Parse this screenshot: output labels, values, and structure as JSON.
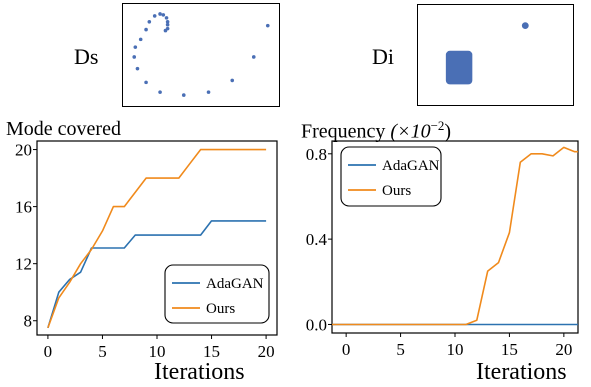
{
  "panels": {
    "ds": {
      "label": "Ds"
    },
    "di": {
      "label": "Di"
    }
  },
  "colors": {
    "adagan": "#2c72b0",
    "ours": "#f08a1c",
    "points": "#4a6fb5"
  },
  "chart_data": [
    {
      "type": "scatter",
      "name_label": "Ds",
      "axes": "hidden",
      "points": [
        [
          -0.08,
          0.62
        ],
        [
          -0.05,
          0.7
        ],
        [
          0.0,
          0.76
        ],
        [
          0.05,
          0.78
        ],
        [
          0.08,
          0.77
        ],
        [
          0.11,
          0.74
        ],
        [
          0.12,
          0.7
        ],
        [
          0.12,
          0.67
        ],
        [
          0.12,
          0.63
        ],
        [
          0.1,
          0.61
        ],
        [
          -0.13,
          0.52
        ],
        [
          -0.18,
          0.44
        ],
        [
          -0.19,
          0.34
        ],
        [
          -0.16,
          0.22
        ],
        [
          -0.08,
          0.08
        ],
        [
          0.05,
          -0.02
        ],
        [
          0.27,
          -0.05
        ],
        [
          0.5,
          -0.02
        ],
        [
          0.72,
          0.1
        ],
        [
          0.92,
          0.34
        ],
        [
          1.05,
          0.66
        ]
      ]
    },
    {
      "type": "scatter",
      "name_label": "Di",
      "axes": "hidden",
      "points": [
        [
          0.7,
          0.8
        ]
      ],
      "cluster": {
        "shape": "square",
        "x": [
          0.1,
          0.3
        ],
        "y": [
          0.1,
          0.5
        ]
      }
    },
    {
      "type": "line",
      "title": "Mode covered",
      "xlabel": "Iterations",
      "xlim": [
        -1,
        21
      ],
      "ylim": [
        7,
        20.6
      ],
      "xticks": [
        "0",
        "5",
        "10",
        "15",
        "20"
      ],
      "yticks": [
        "8",
        "12",
        "16",
        "20"
      ],
      "legend_position": "lower-right",
      "series": [
        {
          "name": "AdaGAN",
          "x": [
            0,
            1,
            2,
            3,
            4,
            5,
            6,
            7,
            8,
            9,
            10,
            11,
            12,
            13,
            14,
            15,
            16,
            17,
            18,
            19,
            20
          ],
          "values": [
            7.5,
            10,
            10.9,
            11.4,
            13.1,
            13.1,
            13.1,
            13.1,
            14,
            14,
            14,
            14,
            14,
            14,
            14,
            15,
            15,
            15,
            15,
            15,
            15
          ]
        },
        {
          "name": "Ours",
          "x": [
            0,
            1,
            2,
            3,
            4,
            5,
            6,
            7,
            8,
            9,
            10,
            11,
            12,
            13,
            14,
            15,
            16,
            17,
            18,
            19,
            20
          ],
          "values": [
            7.5,
            9.6,
            10.7,
            12,
            13,
            14.3,
            16,
            16,
            17,
            18,
            18,
            18,
            18,
            19,
            20,
            20,
            20,
            20,
            20,
            20,
            20
          ]
        }
      ]
    },
    {
      "type": "line",
      "title": "Frequency",
      "title_suffix": "(×10",
      "title_exponent": "−2",
      "title_close": ")",
      "xlabel": "Iterations",
      "xlim": [
        -1.3,
        21.3
      ],
      "ylim": [
        -0.04,
        0.86
      ],
      "xticks": [
        "0",
        "5",
        "10",
        "15",
        "20"
      ],
      "yticks": [
        "0.0",
        "0.4",
        "0.8"
      ],
      "legend_position": "upper-left",
      "series": [
        {
          "name": "AdaGAN",
          "x": [
            -1.3,
            21.3
          ],
          "values": [
            0,
            0
          ]
        },
        {
          "name": "Ours",
          "x": [
            -1.3,
            0,
            1,
            2,
            3,
            4,
            5,
            6,
            7,
            8,
            9,
            10,
            11,
            12,
            13,
            14,
            15,
            16,
            17,
            18,
            19,
            20,
            21,
            21.3
          ],
          "values": [
            0,
            0,
            0,
            0,
            0,
            0,
            0,
            0,
            0,
            0,
            0,
            0,
            0,
            0.02,
            0.25,
            0.29,
            0.43,
            0.76,
            0.8,
            0.8,
            0.79,
            0.83,
            0.81,
            0.81
          ]
        }
      ]
    }
  ]
}
